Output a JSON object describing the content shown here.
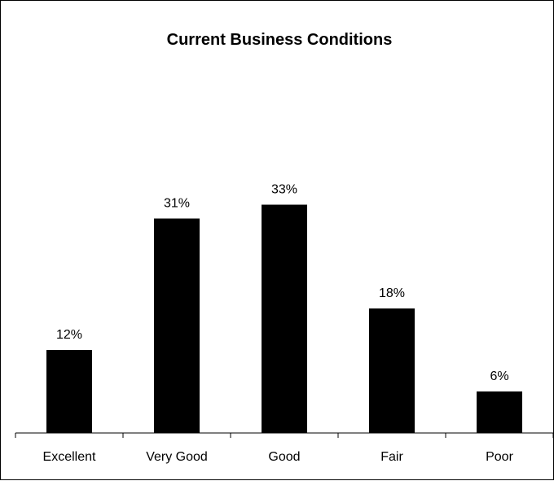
{
  "chart_data": {
    "type": "bar",
    "title": "Current Business Conditions",
    "categories": [
      "Excellent",
      "Very Good",
      "Good",
      "Fair",
      "Poor"
    ],
    "values": [
      12,
      31,
      33,
      18,
      6
    ],
    "value_labels": [
      "12%",
      "31%",
      "33%",
      "18%",
      "6%"
    ],
    "xlabel": "",
    "ylabel": "",
    "ylim": [
      0,
      50
    ],
    "grid": false,
    "legend": "none",
    "bar_color": "#000000"
  }
}
